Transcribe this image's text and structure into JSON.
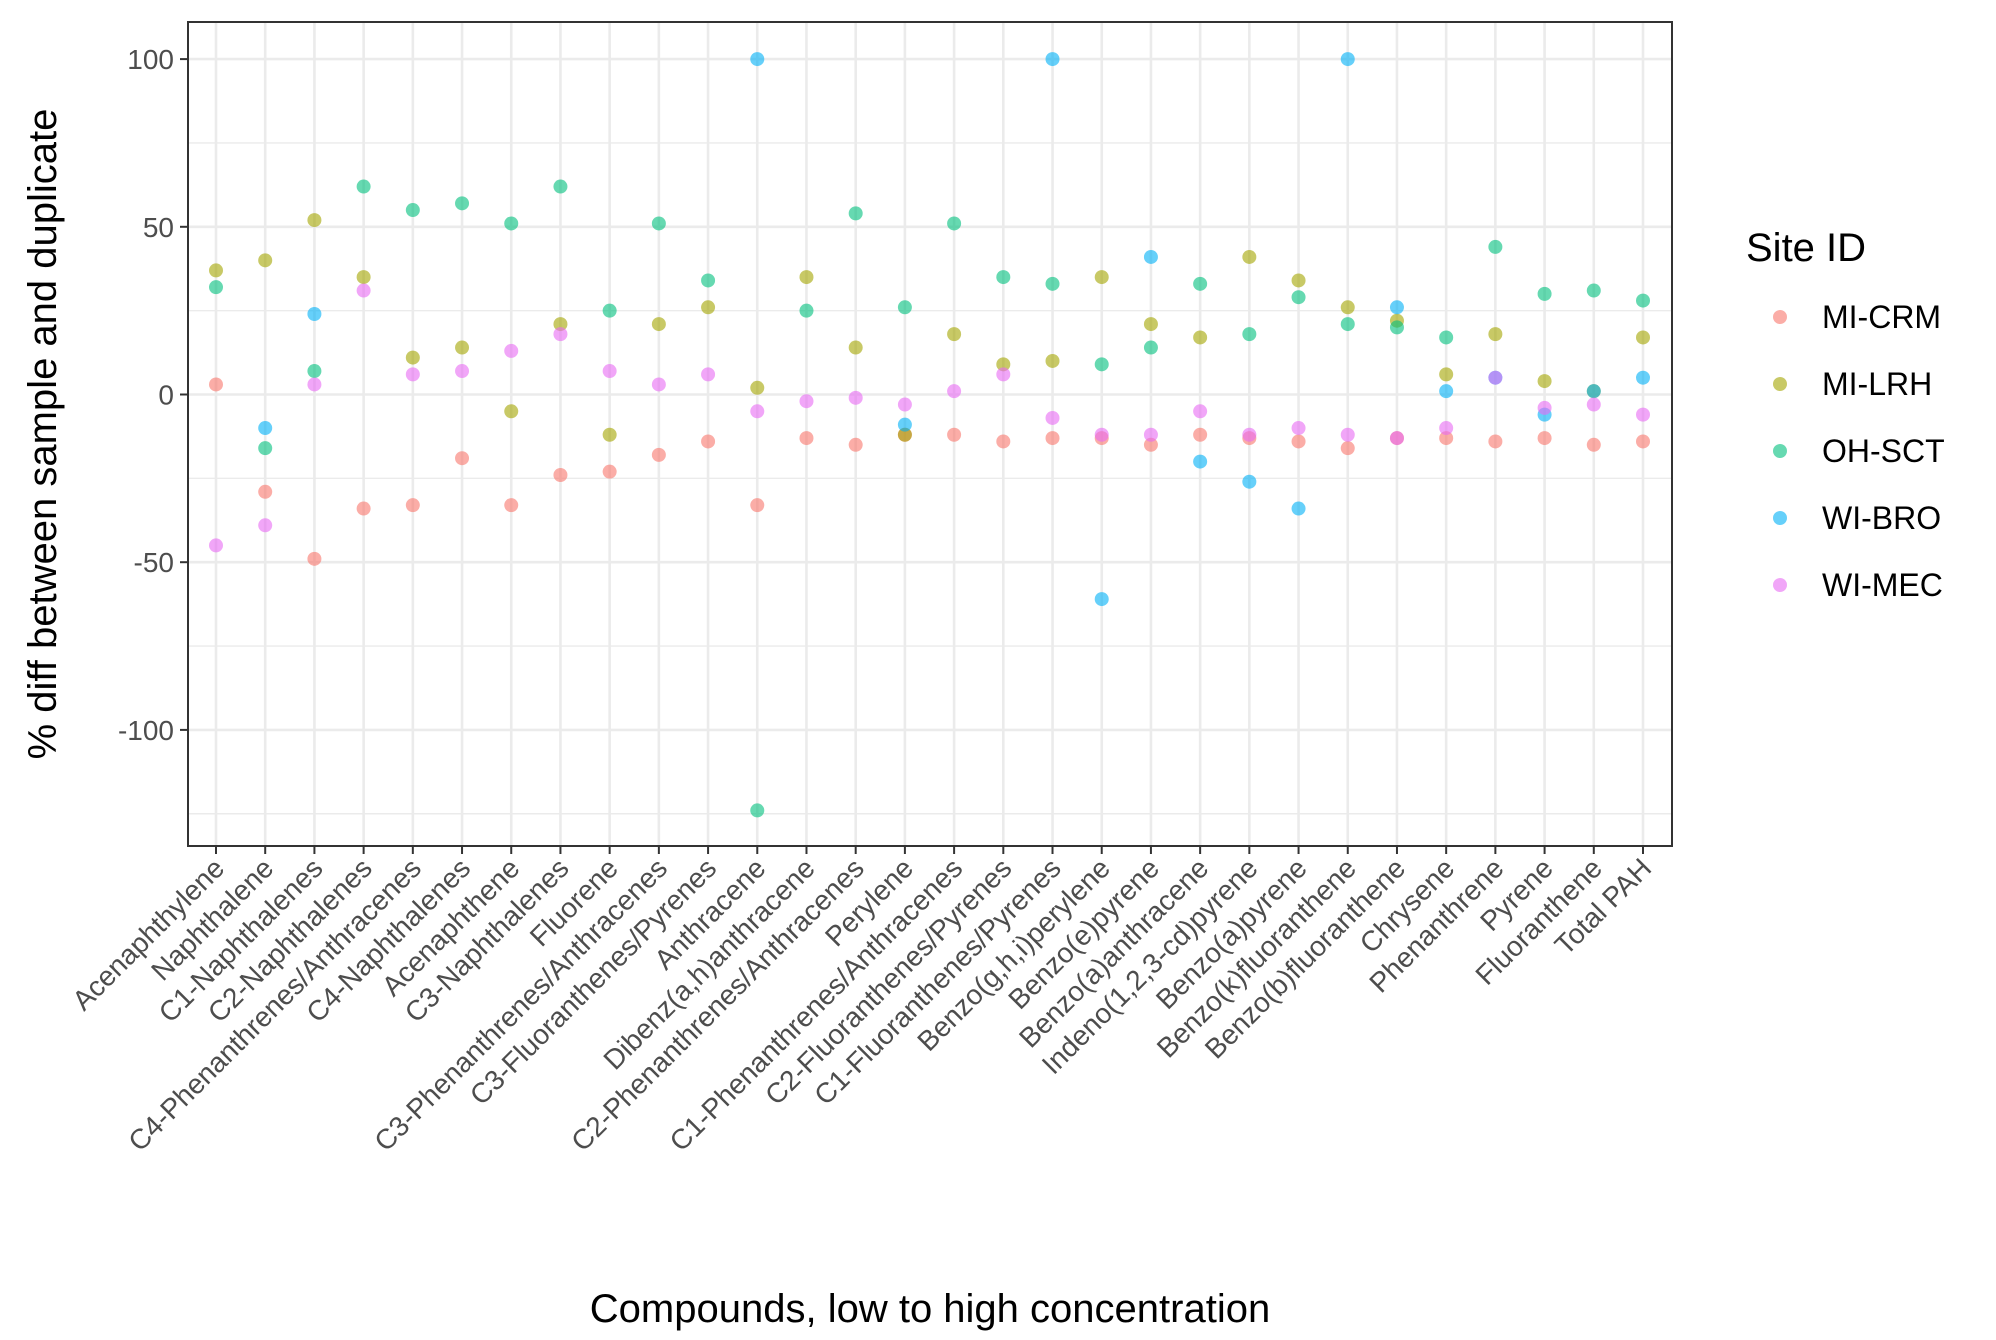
{
  "chart_data": {
    "type": "scatter",
    "title": "",
    "xlabel": "Compounds, low to high concentration",
    "ylabel": "% diff between sample and duplicate",
    "ylim": [
      -135,
      111
    ],
    "yticks": [
      -100,
      -50,
      0,
      50,
      100
    ],
    "grid": true,
    "legend": {
      "title": "Site ID",
      "position": "right"
    },
    "categories": [
      "Acenaphthylene",
      "Naphthalene",
      "C1-Naphthalenes",
      "C2-Naphthalenes",
      "C4-Phenanthrenes/Anthracenes",
      "C4-Naphthalenes",
      "Acenaphthene",
      "C3-Naphthalenes",
      "Fluorene",
      "C3-Phenanthrenes/Anthracenes",
      "C3-Fluoranthenes/Pyrenes",
      "Anthracene",
      "Dibenz(a,h)anthracene",
      "C2-Phenanthrenes/Anthracenes",
      "Perylene",
      "C1-Phenanthrenes/Anthracenes",
      "C2-Fluoranthenes/Pyrenes",
      "C1-Fluoranthenes/Pyrenes",
      "Benzo(g,h,i)perylene",
      "Benzo(e)pyrene",
      "Benzo(a)anthracene",
      "Indeno(1,2,3-cd)pyrene",
      "Benzo(a)pyrene",
      "Benzo(k)fluoranthene",
      "Benzo(b)fluoranthene",
      "Chrysene",
      "Phenanthrene",
      "Pyrene",
      "Fluoranthene",
      "Total PAH"
    ],
    "series": [
      {
        "name": "MI-CRM",
        "color": "#F8766D",
        "values": [
          3,
          -29,
          -49,
          -34,
          -33,
          -19,
          -33,
          -24,
          -23,
          -18,
          -14,
          -33,
          -13,
          -15,
          -12,
          -12,
          -14,
          -13,
          -13,
          -15,
          -12,
          -13,
          -14,
          -16,
          -13,
          -13,
          -14,
          -13,
          -15,
          -14
        ]
      },
      {
        "name": "MI-LRH",
        "color": "#A3A500",
        "values": [
          37,
          40,
          52,
          35,
          11,
          14,
          -5,
          21,
          -12,
          21,
          26,
          2,
          35,
          14,
          -12,
          18,
          9,
          10,
          35,
          21,
          17,
          41,
          34,
          26,
          22,
          6,
          18,
          4,
          1,
          17
        ]
      },
      {
        "name": "OH-SCT",
        "color": "#00BF7D",
        "values": [
          32,
          -16,
          7,
          62,
          55,
          57,
          51,
          62,
          25,
          51,
          34,
          -124,
          25,
          54,
          26,
          51,
          35,
          33,
          9,
          14,
          33,
          18,
          29,
          21,
          20,
          17,
          44,
          30,
          31,
          28
        ]
      },
      {
        "name": "WI-BRO",
        "color": "#00B0F6",
        "values": [
          null,
          -10,
          24,
          null,
          null,
          null,
          null,
          null,
          null,
          null,
          null,
          100,
          null,
          null,
          -9,
          null,
          null,
          100,
          -61,
          41,
          -20,
          -26,
          -34,
          100,
          26,
          1,
          5,
          -6,
          1,
          5
        ]
      },
      {
        "name": "WI-MEC",
        "color": "#E76BF3",
        "values": [
          -45,
          -39,
          3,
          31,
          6,
          7,
          13,
          18,
          7,
          3,
          6,
          -5,
          -2,
          -1,
          -3,
          1,
          6,
          -7,
          -12,
          -12,
          -5,
          -12,
          -10,
          -12,
          -13,
          -10,
          5,
          -4,
          -3,
          -6
        ]
      }
    ]
  }
}
